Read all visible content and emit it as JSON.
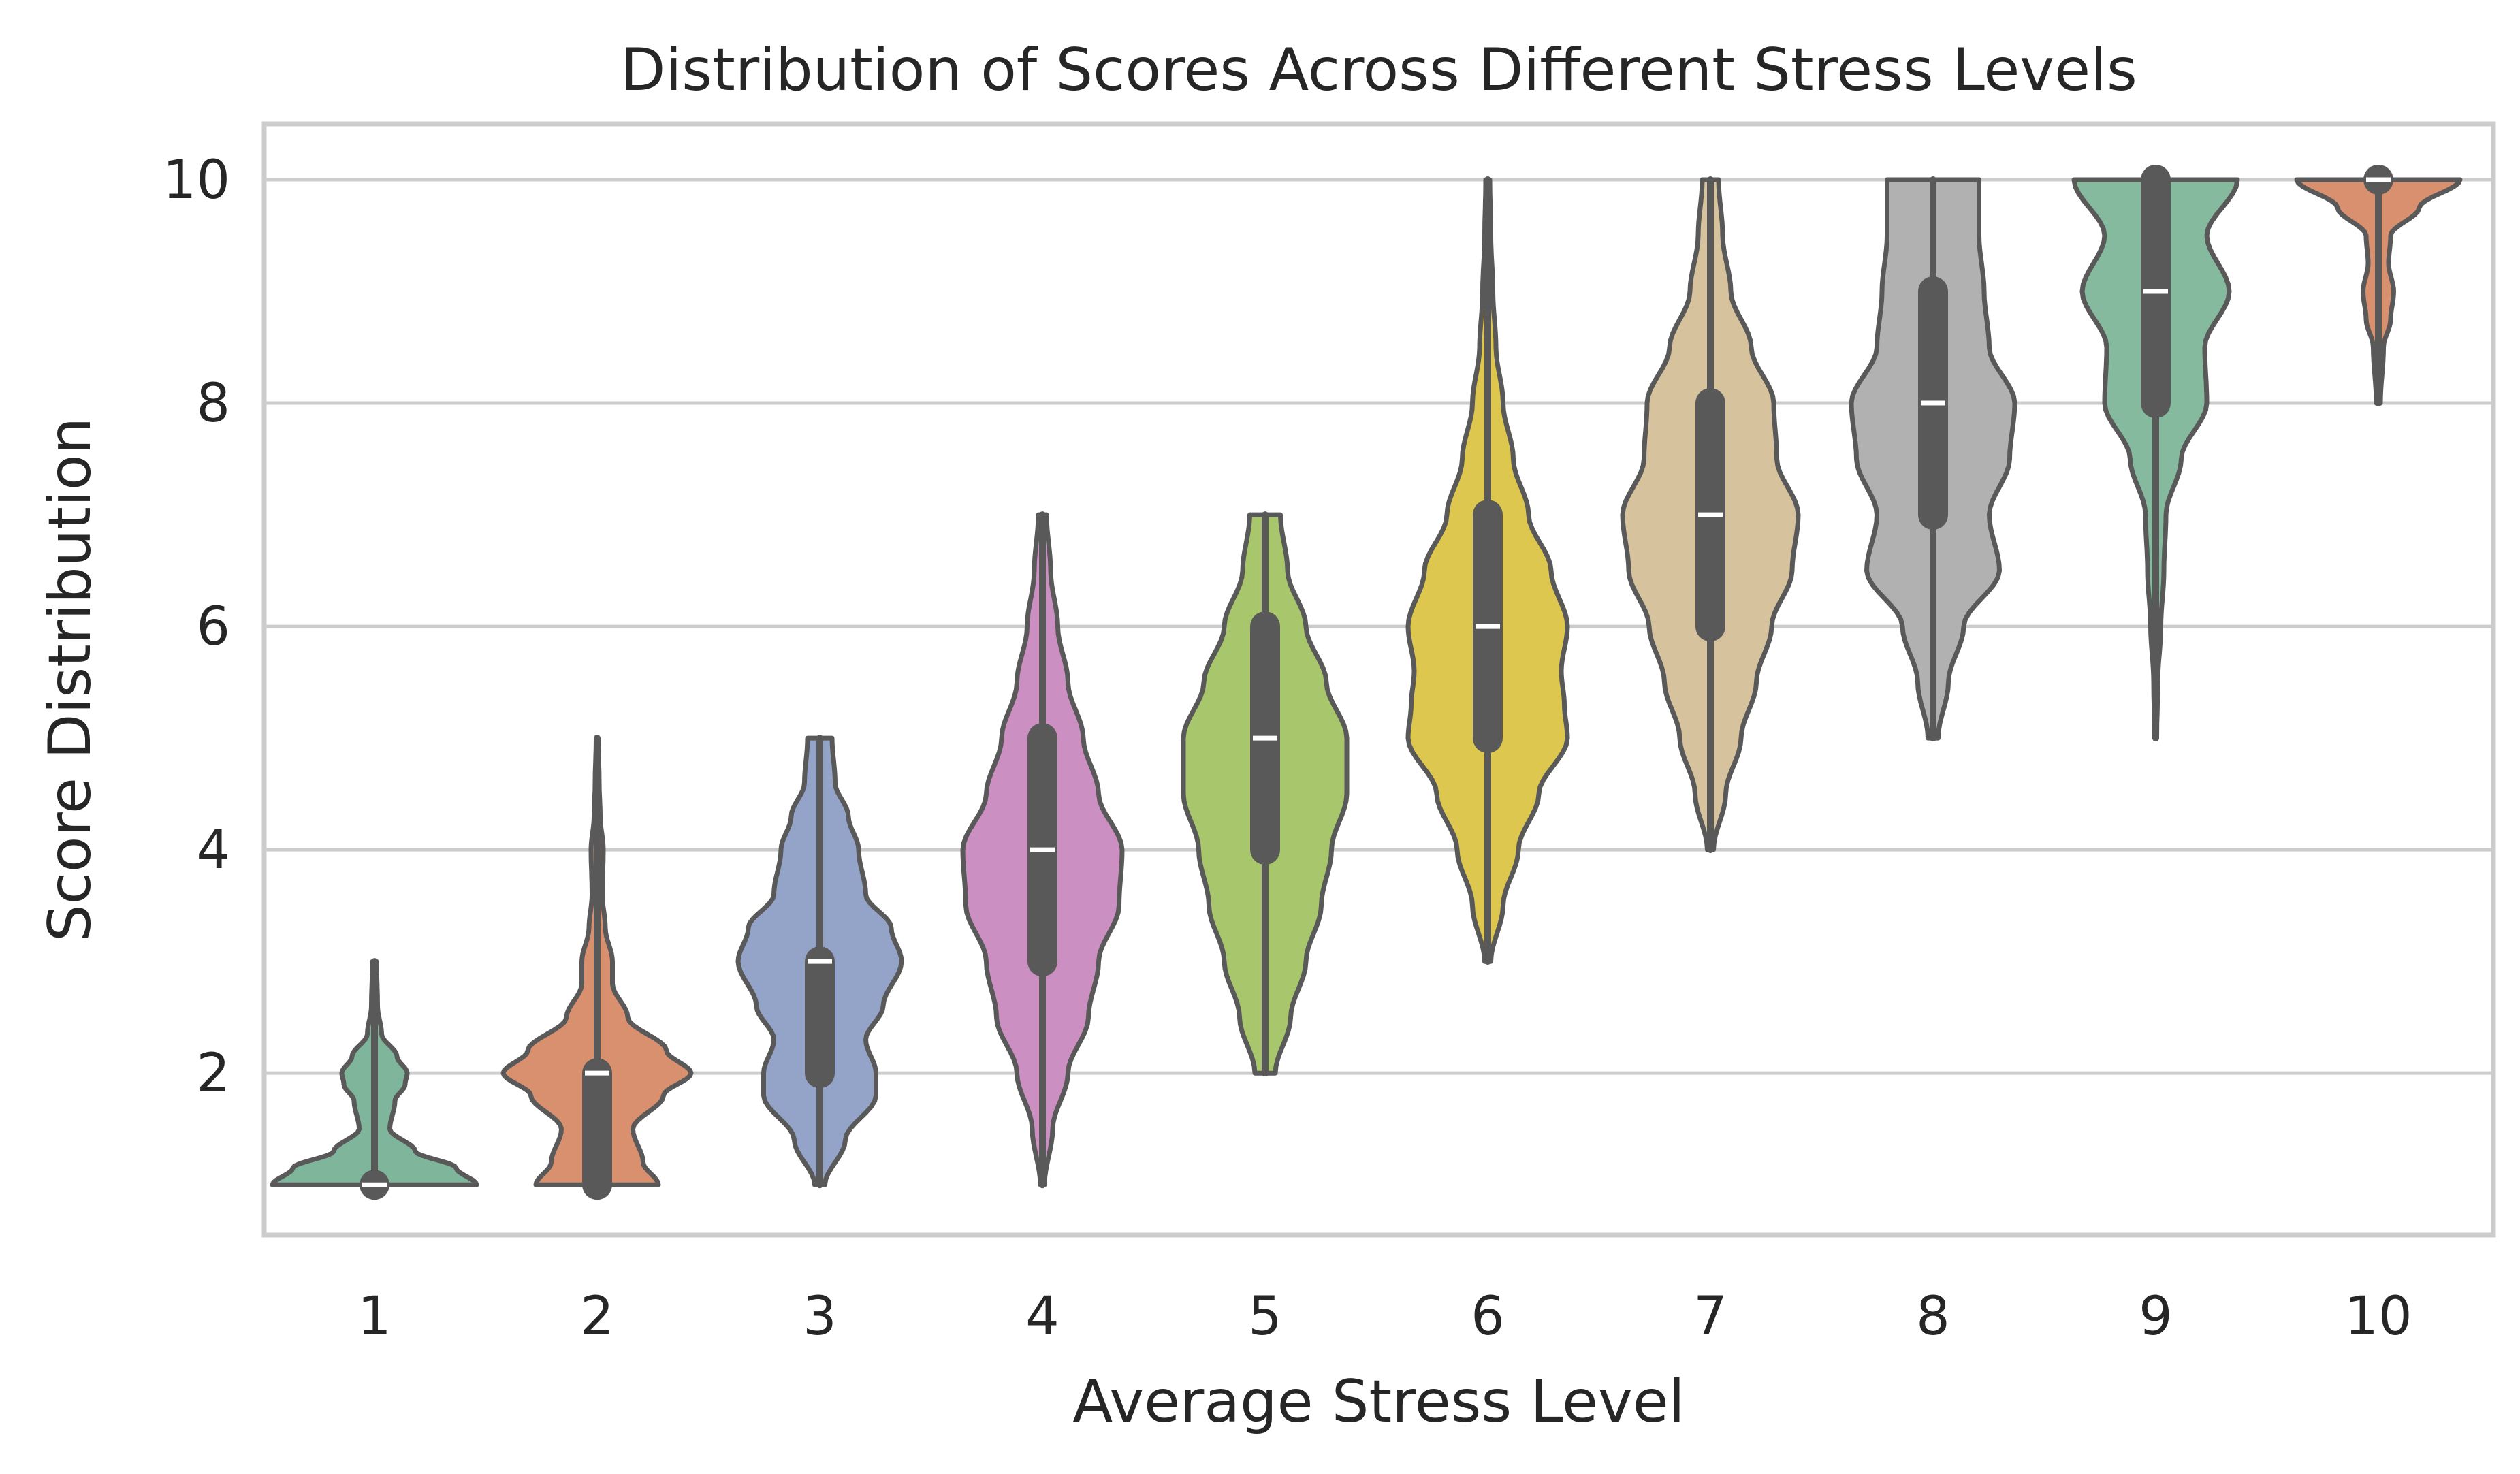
{
  "chart_data": {
    "type": "violin",
    "title": "Distribution of Scores Across Different Stress Levels",
    "xlabel": "Average Stress Level",
    "ylabel": "Score Distribution",
    "categories": [
      "1",
      "2",
      "3",
      "4",
      "5",
      "6",
      "7",
      "8",
      "9",
      "10"
    ],
    "ylim": [
      0.55,
      10.5
    ],
    "yticks": [
      2,
      4,
      6,
      8,
      10
    ],
    "ytick_labels": [
      "2",
      "4",
      "6",
      "8",
      "10"
    ],
    "grid": "horizontal",
    "series": [
      {
        "name": "1",
        "color": "#7fb59b",
        "min": 1,
        "q1": 1,
        "median": 1,
        "q3": 1,
        "max": 3,
        "density": [
          [
            1,
            1.0
          ],
          [
            1.15,
            0.8
          ],
          [
            1.3,
            0.4
          ],
          [
            1.5,
            0.15
          ],
          [
            1.75,
            0.2
          ],
          [
            1.9,
            0.3
          ],
          [
            2,
            0.32
          ],
          [
            2.15,
            0.22
          ],
          [
            2.35,
            0.07
          ],
          [
            2.6,
            0.03
          ],
          [
            3,
            0.02
          ]
        ]
      },
      {
        "name": "2",
        "color": "#d9906f",
        "min": 1,
        "q1": 1,
        "median": 2,
        "q3": 2,
        "max": 5,
        "density": [
          [
            1,
            0.6
          ],
          [
            1.2,
            0.45
          ],
          [
            1.5,
            0.35
          ],
          [
            1.8,
            0.65
          ],
          [
            2,
            0.92
          ],
          [
            2.2,
            0.68
          ],
          [
            2.5,
            0.3
          ],
          [
            2.8,
            0.15
          ],
          [
            3,
            0.15
          ],
          [
            3.3,
            0.08
          ],
          [
            3.6,
            0.05
          ],
          [
            4,
            0.06
          ],
          [
            4.3,
            0.03
          ],
          [
            4.6,
            0.02
          ],
          [
            5,
            0.01
          ]
        ]
      },
      {
        "name": "3",
        "color": "#94a3c8",
        "min": 1,
        "q1": 2,
        "median": 3,
        "q3": 3,
        "max": 5,
        "density": [
          [
            1,
            0.05
          ],
          [
            1.4,
            0.25
          ],
          [
            1.8,
            0.55
          ],
          [
            2,
            0.55
          ],
          [
            2.3,
            0.45
          ],
          [
            2.6,
            0.62
          ],
          [
            3,
            0.8
          ],
          [
            3.3,
            0.7
          ],
          [
            3.6,
            0.45
          ],
          [
            4,
            0.38
          ],
          [
            4.3,
            0.28
          ],
          [
            4.6,
            0.15
          ],
          [
            5,
            0.12
          ]
        ]
      },
      {
        "name": "4",
        "color": "#cc8fc1",
        "min": 1,
        "q1": 3,
        "median": 4,
        "q3": 5,
        "max": 7,
        "density": [
          [
            1,
            0.02
          ],
          [
            1.5,
            0.1
          ],
          [
            2,
            0.25
          ],
          [
            2.5,
            0.45
          ],
          [
            3,
            0.55
          ],
          [
            3.5,
            0.75
          ],
          [
            4,
            0.78
          ],
          [
            4.5,
            0.55
          ],
          [
            5,
            0.4
          ],
          [
            5.5,
            0.25
          ],
          [
            6,
            0.15
          ],
          [
            6.5,
            0.08
          ],
          [
            7,
            0.04
          ]
        ]
      },
      {
        "name": "5",
        "color": "#a8c66b",
        "min": 2,
        "q1": 4,
        "median": 5,
        "q3": 6,
        "max": 7,
        "density": [
          [
            2,
            0.1
          ],
          [
            2.5,
            0.25
          ],
          [
            3,
            0.4
          ],
          [
            3.5,
            0.55
          ],
          [
            4,
            0.65
          ],
          [
            4.5,
            0.8
          ],
          [
            5,
            0.8
          ],
          [
            5.5,
            0.6
          ],
          [
            6,
            0.4
          ],
          [
            6.5,
            0.22
          ],
          [
            7,
            0.15
          ]
        ]
      },
      {
        "name": "6",
        "color": "#dec74e",
        "min": 3,
        "q1": 5,
        "median": 6,
        "q3": 7,
        "max": 10,
        "density": [
          [
            3,
            0.03
          ],
          [
            3.5,
            0.15
          ],
          [
            4,
            0.3
          ],
          [
            4.5,
            0.5
          ],
          [
            5,
            0.78
          ],
          [
            5.3,
            0.75
          ],
          [
            5.6,
            0.72
          ],
          [
            6,
            0.78
          ],
          [
            6.5,
            0.62
          ],
          [
            7,
            0.4
          ],
          [
            7.5,
            0.25
          ],
          [
            8,
            0.15
          ],
          [
            8.5,
            0.08
          ],
          [
            9,
            0.05
          ],
          [
            9.5,
            0.03
          ],
          [
            10,
            0.02
          ]
        ]
      },
      {
        "name": "7",
        "color": "#d6c39d",
        "min": 4,
        "q1": 6,
        "median": 7,
        "q3": 8,
        "max": 10,
        "density": [
          [
            4,
            0.03
          ],
          [
            4.5,
            0.15
          ],
          [
            5,
            0.3
          ],
          [
            5.5,
            0.45
          ],
          [
            6,
            0.6
          ],
          [
            6.5,
            0.8
          ],
          [
            7,
            0.86
          ],
          [
            7.5,
            0.65
          ],
          [
            8,
            0.62
          ],
          [
            8.5,
            0.4
          ],
          [
            9,
            0.2
          ],
          [
            9.5,
            0.12
          ],
          [
            10,
            0.08
          ]
        ]
      },
      {
        "name": "8",
        "color": "#b1b1b1",
        "min": 5,
        "q1": 7,
        "median": 8,
        "q3": 9,
        "max": 10,
        "density": [
          [
            5,
            0.05
          ],
          [
            5.5,
            0.15
          ],
          [
            6,
            0.3
          ],
          [
            6.5,
            0.65
          ],
          [
            7,
            0.55
          ],
          [
            7.5,
            0.75
          ],
          [
            8,
            0.8
          ],
          [
            8.5,
            0.55
          ],
          [
            9,
            0.5
          ],
          [
            9.5,
            0.45
          ],
          [
            10,
            0.45
          ]
        ]
      },
      {
        "name": "9",
        "color": "#85ba9f",
        "min": 5,
        "q1": 8,
        "median": 9,
        "q3": 10,
        "max": 10,
        "density": [
          [
            5,
            0.01
          ],
          [
            5.5,
            0.02
          ],
          [
            6,
            0.05
          ],
          [
            6.5,
            0.08
          ],
          [
            7,
            0.1
          ],
          [
            7.5,
            0.25
          ],
          [
            8,
            0.5
          ],
          [
            8.5,
            0.48
          ],
          [
            9,
            0.72
          ],
          [
            9.5,
            0.5
          ],
          [
            10,
            0.8
          ]
        ]
      },
      {
        "name": "10",
        "color": "#d9906f",
        "min": 8,
        "q1": 10,
        "median": 10,
        "q3": 10,
        "max": 10,
        "density": [
          [
            8,
            0.02
          ],
          [
            8.5,
            0.05
          ],
          [
            8.75,
            0.12
          ],
          [
            9,
            0.15
          ],
          [
            9.25,
            0.1
          ],
          [
            9.5,
            0.12
          ],
          [
            9.75,
            0.4
          ],
          [
            10,
            0.8
          ]
        ]
      }
    ]
  }
}
